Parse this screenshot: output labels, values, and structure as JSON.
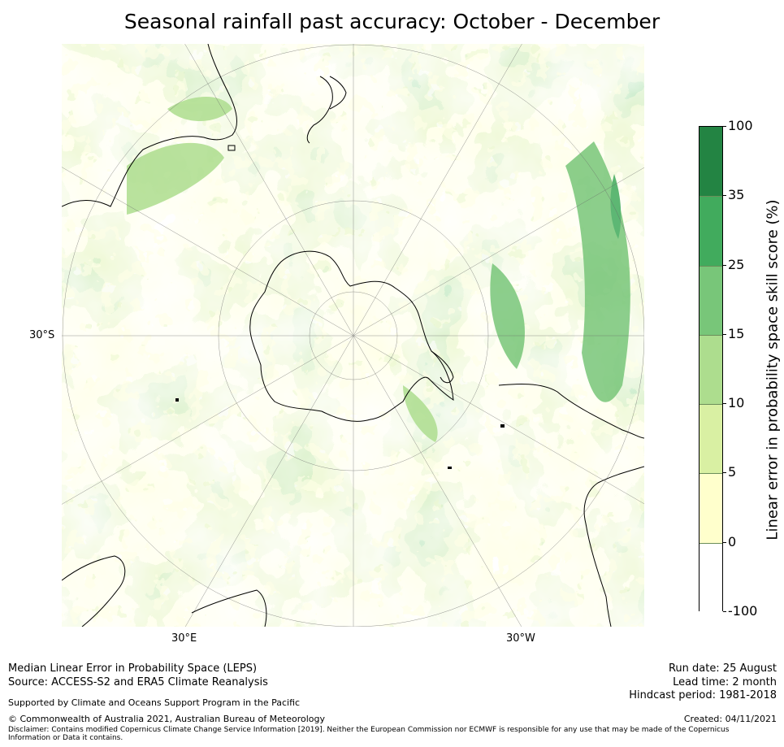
{
  "title": "Seasonal rainfall past accuracy: October - December",
  "map": {
    "labels": {
      "lat": "30°S",
      "lon_east": "30°E",
      "lon_west": "30°W"
    }
  },
  "colorbar": {
    "label": "Linear error in probability space skill score (%)",
    "ticks": [
      "100",
      "35",
      "25",
      "15",
      "10",
      "5",
      "0",
      "-100"
    ],
    "bins": [
      {
        "range": "-100 to 0",
        "color": "#ffffff"
      },
      {
        "range": "0 to 5",
        "color": "#ffffcc"
      },
      {
        "range": "5 to 10",
        "color": "#d9f0a3"
      },
      {
        "range": "10 to 15",
        "color": "#addd8e"
      },
      {
        "range": "15 to 25",
        "color": "#78c679"
      },
      {
        "range": "25 to 35",
        "color": "#41ab5d"
      },
      {
        "range": "35 to 100",
        "color": "#238443"
      }
    ]
  },
  "footer": {
    "line1": "Median Linear Error in Probability Space (LEPS)",
    "line2": "Source: ACCESS-S2 and ERA5 Climate Reanalysis",
    "support": "Supported by Climate and Oceans Support Program in the Pacific",
    "copyright": "© Commonwealth of Australia 2021, Australian Bureau of Meteorology",
    "disclaimer_1": "Disclaimer: Contains modified Copernicus Climate Change Service Information [2019]. Neither the European Commission nor ECMWF is responsible for any use that may be made of the Copernicus",
    "disclaimer_2": "Information or Data it contains.",
    "run_date": "Run date: 25 August",
    "lead_time": "Lead time: 2 month",
    "hindcast": "Hindcast period: 1981-2018",
    "created": "Created: 04/11/2021"
  }
}
